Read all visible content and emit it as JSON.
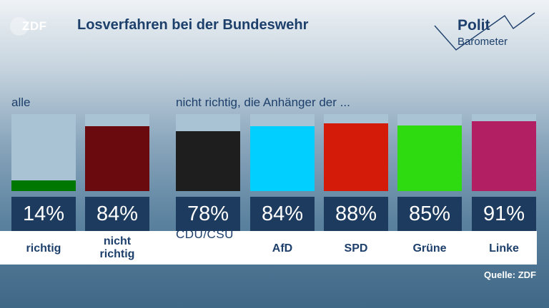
{
  "logo_text": "ZDF",
  "title": "Losverfahren bei der Bundeswehr",
  "brand": {
    "line1": "Polit",
    "line2": "Barometer"
  },
  "group_labels": {
    "all": "alle",
    "partisans": "nicht richtig, die Anhänger der ..."
  },
  "source": "Quelle: ZDF",
  "colors": {
    "richtig": "#007700",
    "nicht_richtig": "#6b0a0e",
    "CDU/CSU": "#1e1e1e",
    "AfD": "#00cfff",
    "SPD": "#d41b0a",
    "Grüne": "#2edb10",
    "Linke": "#b21f63",
    "bar_track": "#a9c2d4",
    "value_box": "#1d3b5e"
  },
  "chart_data": {
    "type": "bar",
    "title": "Losverfahren bei der Bundeswehr",
    "groups": [
      {
        "label": "alle",
        "categories": [
          "richtig",
          "nicht richtig"
        ],
        "values": [
          14,
          84
        ],
        "value_labels": [
          "14%",
          "84%"
        ]
      },
      {
        "label": "nicht richtig, die Anhänger der ...",
        "categories": [
          "CDU/CSU",
          "AfD",
          "SPD",
          "Grüne",
          "Linke"
        ],
        "values": [
          78,
          84,
          88,
          85,
          91
        ],
        "value_labels": [
          "78%",
          "84%",
          "88%",
          "85%",
          "91%"
        ]
      }
    ],
    "ylim": [
      0,
      100
    ],
    "unit": "%",
    "grid": false
  }
}
